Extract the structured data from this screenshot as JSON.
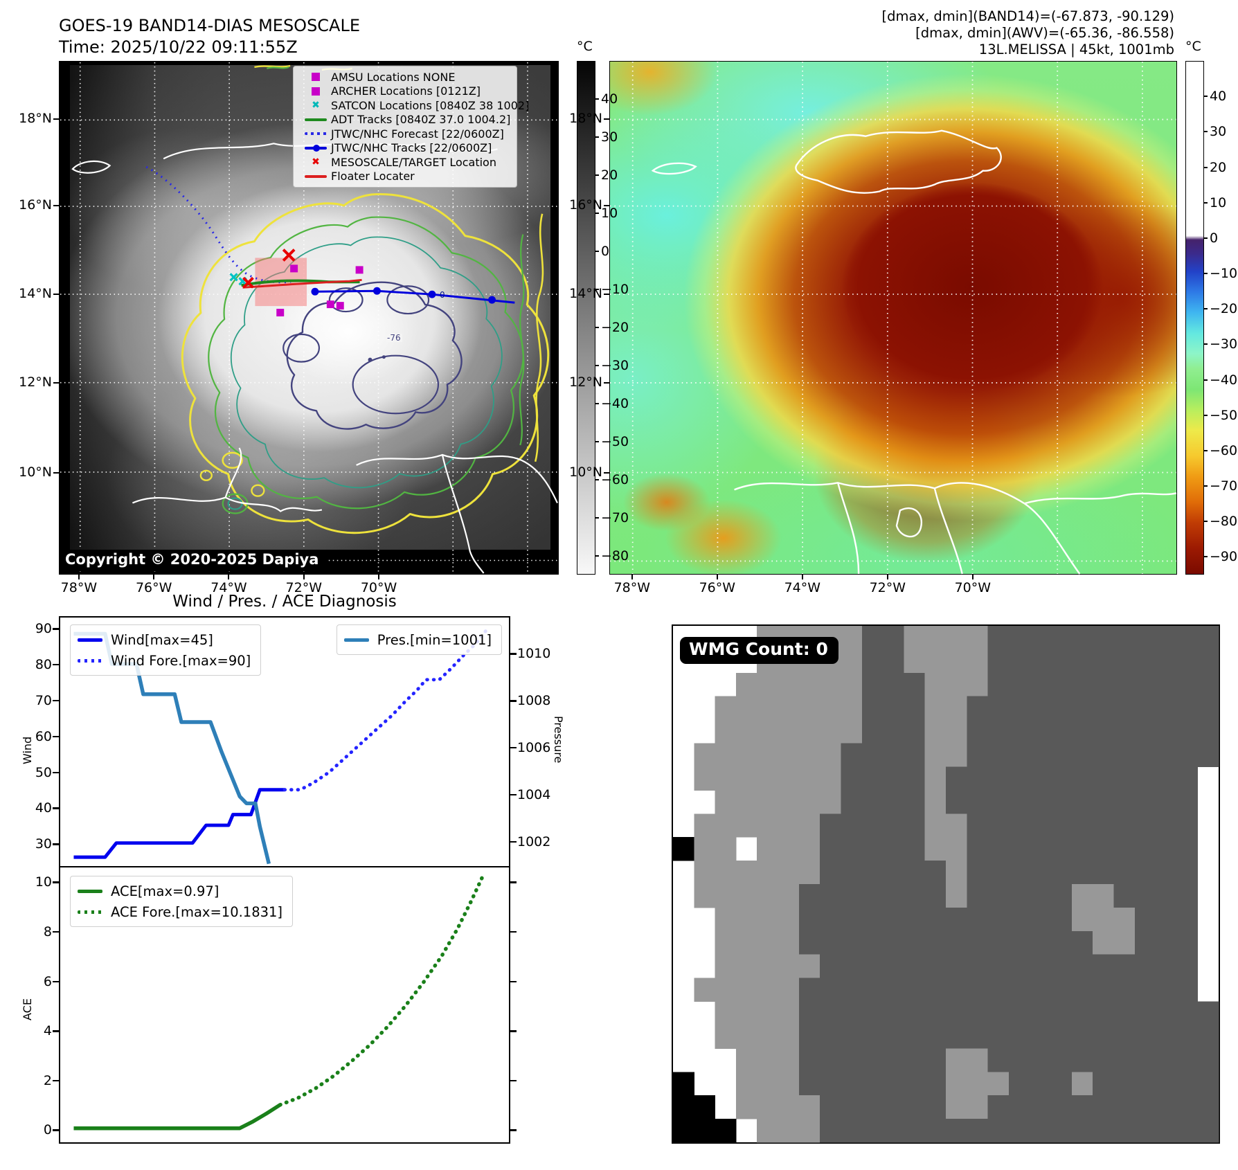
{
  "figure": {
    "band14": {
      "title": "GOES-19 BAND14-DIAS MESOSCALE",
      "time": "Time: 2025/10/22 09:11:55Z",
      "copyright": "Copyright © 2020-2025 Dapiya",
      "colorbar_unit": "°C",
      "colorbar_ticks": [
        "40",
        "30",
        "20",
        "10",
        "0",
        "−10",
        "−20",
        "−30",
        "−40",
        "−50",
        "−60",
        "−70",
        "−80"
      ],
      "lat_ticks": [
        "18°N",
        "16°N",
        "14°N",
        "12°N",
        "10°N"
      ],
      "lon_ticks": [
        "78°W",
        "76°W",
        "74°W",
        "72°W",
        "70°W"
      ],
      "contour_label": "-76",
      "track_hour_label": "0",
      "legend": [
        {
          "type": "square",
          "color": "#c800c8",
          "label": "AMSU Locations NONE"
        },
        {
          "type": "square",
          "color": "#c800c8",
          "label": "ARCHER Locations [0121Z]"
        },
        {
          "type": "x",
          "color": "#00b8b8",
          "label": "SATCON Locations [0840Z 38 1002]"
        },
        {
          "type": "line",
          "color": "#1e8a1e",
          "label": "ADT Tracks [0840Z 37.0 1004.2]"
        },
        {
          "type": "dotted",
          "color": "#2828e6",
          "label": "JTWC/NHC Forecast [22/0600Z]"
        },
        {
          "type": "line-dot",
          "color": "#0000dc",
          "label": "JTWC/NHC Tracks [22/0600Z]"
        },
        {
          "type": "x",
          "color": "#e60000",
          "label": "MESOSCALE/TARGET Location"
        },
        {
          "type": "line",
          "color": "#dc2020",
          "label": "Floater Locater"
        }
      ]
    },
    "awv": {
      "header_lines": [
        "[dmax, dmin](BAND14)=(-67.873, -90.129)",
        "[dmax, dmin](AWV)=(-65.36, -86.558)",
        "13L.MELISSA | 45kt, 1001mb"
      ],
      "colorbar_unit": "°C",
      "colorbar_ticks": [
        "40",
        "30",
        "20",
        "10",
        "0",
        "−10",
        "−20",
        "−30",
        "−40",
        "−50",
        "−60",
        "−70",
        "−80",
        "−90"
      ],
      "lat_ticks": [
        "18°N",
        "16°N",
        "14°N",
        "12°N",
        "10°N"
      ],
      "lon_ticks": [
        "78°W",
        "76°W",
        "74°W",
        "72°W",
        "70°W"
      ]
    },
    "diagnosis": {
      "title": "Wind / Pres. / ACE Diagnosis",
      "wind_ylabel": "Wind",
      "pressure_ylabel": "Pressure",
      "ace_ylabel": "ACE",
      "wind_yticks": [
        "90",
        "80",
        "70",
        "60",
        "50",
        "40",
        "30"
      ],
      "pressure_yticks": [
        "1010",
        "1008",
        "1006",
        "1004",
        "1002"
      ],
      "ace_yticks": [
        "10",
        "8",
        "6",
        "4",
        "2",
        "0"
      ],
      "legend_wind": "Wind[max=45]",
      "legend_wind_fore": "Wind Fore.[max=90]",
      "legend_pres": "Pres.[min=1001]",
      "legend_ace": "ACE[max=0.97]",
      "legend_ace_fore": "ACE Fore.[max=10.1831]"
    },
    "wmg": {
      "count_label": "WMG Count: 0",
      "palette": {
        "W": "#ffffff",
        "L": "#989898",
        "D": "#595959",
        "K": "#000000"
      },
      "grid": [
        "WWWWLLLLLDDLLLLDDDDDDDDDDD",
        "WWWWLLLLLDDLLLLDDDDDDDDDDD",
        "WWWLLLLLLDDDLLLDDDDDDDDDDD",
        "WWLLLLLLLDDDLLDDDDDDDDDDDD",
        "WWLLLLLLLDDDLLDDDDDDDDDDDD",
        "WLLLLLLLDDDDLLDDDDDDDDDDDD",
        "WLLLLLLLDDDDLDDDDDDDDDDDDW",
        "WWLLLLLLDDDDLDDDDDDDDDDDDW",
        "WLLLLLLDDDDDLLDDDDDDDDDDDW",
        "KLLWLLLDDDDDLLDDDDDDDDDDDW",
        "WLLLLLLDDDDDDLDDDDDDDDDDDW",
        "WLLLLLDDDDDDDLDDDDDLLDDDDW",
        "WWLLLLDDDDDDDDDDDDDLLLDDDW",
        "WWLLLLDDDDDDDDDDDDDDLLDDDW",
        "WWLLLLLDDDDDDDDDDDDDDDDDDW",
        "WLLLLLDDDDDDDDDDDDDDDDDDDW",
        "WWLLLLDDDDDDDDDDDDDDDDDDDD",
        "WWLLLLDDDDDDDDDDDDDDDDDDDD",
        "WWWLLLDDDDDDDLLDDDDDDDDDDD",
        "KWWLLLDDDDDDDLLLDDDLDDDDDD",
        "KKWLLLLDDDDDDLLDDDDDDDDDDD",
        "KKKWLLLDDDDDDDDDDDDDDDDDDD"
      ]
    }
  },
  "chart_data": [
    {
      "type": "line",
      "title": "Wind / Pres. / ACE Diagnosis — wind and pressure panel",
      "x_note": "x axis unlabeled (normalized time 0-1)",
      "ylabel": "Wind",
      "y2label": "Pressure",
      "ylim": [
        23.5,
        93.5
      ],
      "y2lim": [
        1000.9,
        1011.6
      ],
      "yticks": [
        90,
        80,
        70,
        60,
        50,
        40,
        30
      ],
      "y2ticks": [
        1010,
        1008,
        1006,
        1004,
        1002
      ],
      "legend_position": "upper left / upper right",
      "series": [
        {
          "name": "Wind[max=45]",
          "style": "solid",
          "color": "#0000ee",
          "axis": "left",
          "width": 5,
          "x": [
            0.03,
            0.1,
            0.125,
            0.295,
            0.325,
            0.375,
            0.385,
            0.425,
            0.445,
            0.5
          ],
          "y": [
            26,
            26,
            30,
            30,
            35,
            35,
            38,
            38,
            45,
            45
          ]
        },
        {
          "name": "Wind Fore.[max=90]",
          "style": "dotted",
          "color": "#2424ff",
          "axis": "left",
          "width": 5,
          "x": [
            0.5,
            0.535,
            0.565,
            0.6,
            0.635,
            0.67,
            0.705,
            0.74,
            0.77,
            0.795,
            0.815,
            0.845,
            0.87,
            0.9,
            0.925,
            0.95
          ],
          "y": [
            45,
            45,
            47,
            50,
            54,
            58,
            62,
            66,
            70,
            73,
            76,
            76,
            79,
            83,
            86,
            90
          ]
        },
        {
          "name": "Pres.[min=1001]",
          "style": "solid",
          "color": "#2e7fb8",
          "axis": "right",
          "width": 5.5,
          "x": [
            0.03,
            0.1,
            0.115,
            0.17,
            0.185,
            0.255,
            0.27,
            0.335,
            0.36,
            0.4,
            0.415,
            0.435,
            0.445,
            0.465
          ],
          "y": [
            1010.9,
            1010.9,
            1009.6,
            1009.6,
            1008.3,
            1008.3,
            1007.1,
            1007.1,
            1005.8,
            1003.9,
            1003.6,
            1003.6,
            1002.6,
            1001.0
          ]
        }
      ]
    },
    {
      "type": "line",
      "title": "Wind / Pres. / ACE Diagnosis — ACE panel",
      "x_note": "x axis unlabeled (normalized time 0-1)",
      "ylabel": "ACE",
      "ylim": [
        -0.55,
        10.6
      ],
      "yticks": [
        0,
        2,
        4,
        6,
        8,
        10
      ],
      "legend_position": "upper left",
      "series": [
        {
          "name": "ACE[max=0.97]",
          "style": "solid",
          "color": "#1a801a",
          "axis": "left",
          "width": 5.5,
          "x": [
            0.03,
            0.4,
            0.43,
            0.46,
            0.49
          ],
          "y": [
            0.02,
            0.02,
            0.3,
            0.62,
            0.97
          ]
        },
        {
          "name": "ACE Fore.[max=10.1831]",
          "style": "dotted",
          "color": "#1a801a",
          "axis": "left",
          "width": 5.5,
          "x": [
            0.49,
            0.53,
            0.57,
            0.61,
            0.65,
            0.69,
            0.73,
            0.77,
            0.81,
            0.85,
            0.885,
            0.915,
            0.94
          ],
          "y": [
            0.97,
            1.25,
            1.65,
            2.15,
            2.75,
            3.4,
            4.15,
            5.0,
            5.95,
            7.0,
            8.1,
            9.2,
            10.18
          ]
        }
      ]
    }
  ]
}
